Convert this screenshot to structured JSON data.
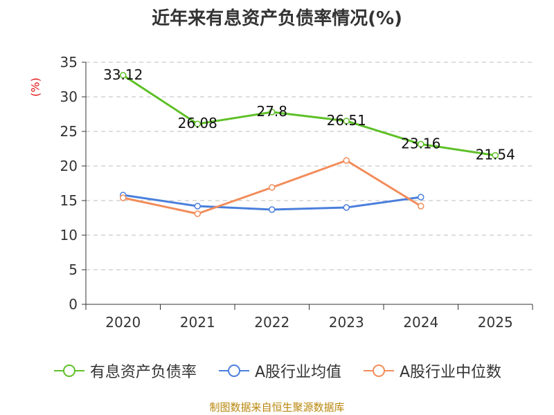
{
  "chart_data": {
    "type": "line",
    "title": "近年来有息资产负债率情况(%)",
    "ylabel": "(%)",
    "xlabel": "",
    "categories": [
      "2020",
      "2021",
      "2022",
      "2023",
      "2024",
      "2025"
    ],
    "ylim": [
      0,
      35
    ],
    "yticks": [
      0,
      5,
      10,
      15,
      20,
      25,
      30,
      35
    ],
    "grid": true,
    "legend_position": "bottom",
    "series": [
      {
        "name": "有息资产负债率",
        "color": "#5dc026",
        "values": [
          33.12,
          26.08,
          27.8,
          26.51,
          23.16,
          21.54
        ],
        "labels": [
          "33.12",
          "26.08",
          "27.8",
          "26.51",
          "23.16",
          "21.54"
        ],
        "show_labels": true
      },
      {
        "name": "A股行业均值",
        "color": "#4a7fdc",
        "values": [
          15.8,
          14.2,
          13.7,
          14.0,
          15.5,
          null
        ],
        "show_labels": false
      },
      {
        "name": "A股行业中位数",
        "color": "#f28c5a",
        "values": [
          15.4,
          13.1,
          16.9,
          20.8,
          14.2,
          null
        ],
        "show_labels": false
      }
    ]
  },
  "footer": {
    "source": "制图数据来自恒生聚源数据库"
  }
}
